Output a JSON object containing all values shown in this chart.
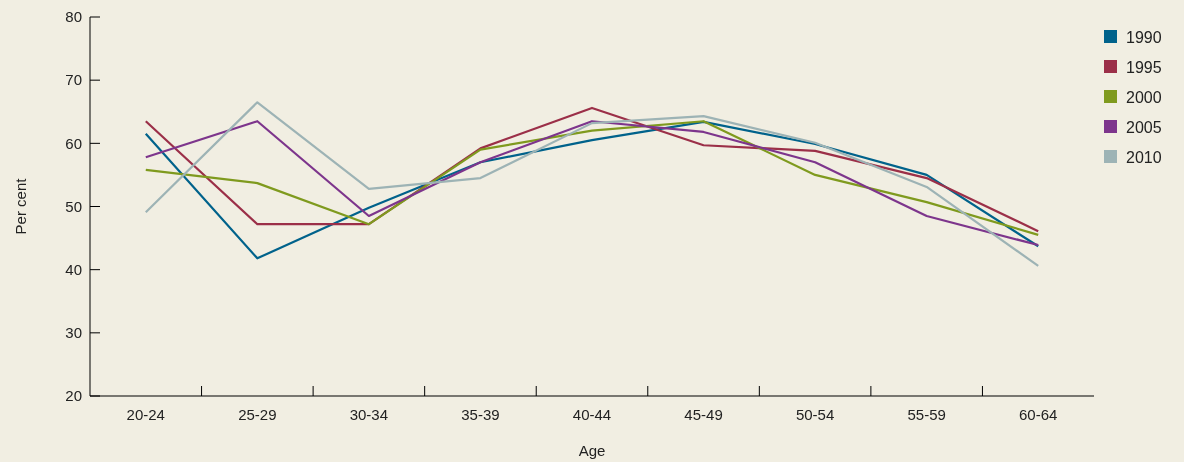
{
  "chart_data": {
    "type": "line",
    "xlabel": "Age",
    "ylabel": "Per cent",
    "categories": [
      "20-24",
      "25-29",
      "30-34",
      "35-39",
      "40-44",
      "45-49",
      "50-54",
      "55-59",
      "60-64"
    ],
    "series": [
      {
        "name": "1990",
        "color": "#00628b",
        "values": [
          61.5,
          41.8,
          49.8,
          57.0,
          60.5,
          63.4,
          59.9,
          55.0,
          43.7
        ]
      },
      {
        "name": "1995",
        "color": "#9b2f48",
        "values": [
          63.5,
          47.2,
          47.2,
          59.2,
          65.6,
          59.7,
          58.8,
          54.5,
          46.1
        ]
      },
      {
        "name": "2000",
        "color": "#7f9a1e",
        "values": [
          55.8,
          53.7,
          47.2,
          59.0,
          62.0,
          63.5,
          55.0,
          50.7,
          45.5
        ]
      },
      {
        "name": "2005",
        "color": "#7d358c",
        "values": [
          57.8,
          63.5,
          48.5,
          57.0,
          63.5,
          61.8,
          57.0,
          48.5,
          43.9
        ]
      },
      {
        "name": "2010",
        "color": "#9db3b5",
        "values": [
          49.1,
          66.5,
          52.8,
          54.5,
          63.2,
          64.3,
          60.1,
          53.1,
          40.6
        ]
      }
    ],
    "ylim": [
      20,
      80
    ],
    "yticks": [
      20,
      30,
      40,
      50,
      60,
      70,
      80
    ],
    "grid": false,
    "legend": "top right",
    "marker": "none",
    "line_style": "solid"
  }
}
